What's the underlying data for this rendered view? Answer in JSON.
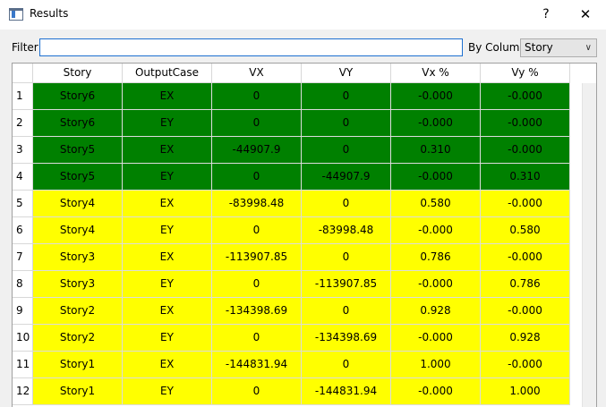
{
  "window": {
    "title": "Results",
    "help_label": "?",
    "close_label": "✕"
  },
  "filter": {
    "label": "Filter",
    "value": ""
  },
  "by_column": {
    "label": "By Column:",
    "selected": "Story"
  },
  "colors": {
    "green": "#008000",
    "yellow": "#ffff00"
  },
  "table": {
    "columns": [
      "Story",
      "OutputCase",
      "VX",
      "VY",
      "Vx %",
      "Vy %"
    ],
    "rows": [
      {
        "num": "1",
        "fill": "#008000",
        "cells": [
          "Story6",
          "EX",
          "0",
          "0",
          "-0.000",
          "-0.000"
        ]
      },
      {
        "num": "2",
        "fill": "#008000",
        "cells": [
          "Story6",
          "EY",
          "0",
          "0",
          "-0.000",
          "-0.000"
        ]
      },
      {
        "num": "3",
        "fill": "#008000",
        "cells": [
          "Story5",
          "EX",
          "-44907.9",
          "0",
          "0.310",
          "-0.000"
        ]
      },
      {
        "num": "4",
        "fill": "#008000",
        "cells": [
          "Story5",
          "EY",
          "0",
          "-44907.9",
          "-0.000",
          "0.310"
        ]
      },
      {
        "num": "5",
        "fill": "#ffff00",
        "cells": [
          "Story4",
          "EX",
          "-83998.48",
          "0",
          "0.580",
          "-0.000"
        ]
      },
      {
        "num": "6",
        "fill": "#ffff00",
        "cells": [
          "Story4",
          "EY",
          "0",
          "-83998.48",
          "-0.000",
          "0.580"
        ]
      },
      {
        "num": "7",
        "fill": "#ffff00",
        "cells": [
          "Story3",
          "EX",
          "-113907.85",
          "0",
          "0.786",
          "-0.000"
        ]
      },
      {
        "num": "8",
        "fill": "#ffff00",
        "cells": [
          "Story3",
          "EY",
          "0",
          "-113907.85",
          "-0.000",
          "0.786"
        ]
      },
      {
        "num": "9",
        "fill": "#ffff00",
        "cells": [
          "Story2",
          "EX",
          "-134398.69",
          "0",
          "0.928",
          "-0.000"
        ]
      },
      {
        "num": "10",
        "fill": "#ffff00",
        "cells": [
          "Story2",
          "EY",
          "0",
          "-134398.69",
          "-0.000",
          "0.928"
        ]
      },
      {
        "num": "11",
        "fill": "#ffff00",
        "cells": [
          "Story1",
          "EX",
          "-144831.94",
          "0",
          "1.000",
          "-0.000"
        ]
      },
      {
        "num": "12",
        "fill": "#ffff00",
        "cells": [
          "Story1",
          "EY",
          "0",
          "-144831.94",
          "-0.000",
          "1.000"
        ]
      }
    ]
  }
}
